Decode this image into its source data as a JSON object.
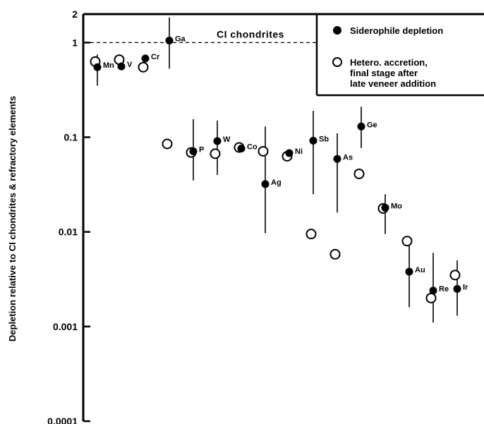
{
  "chart_data": {
    "type": "scatter",
    "title": "",
    "xlabel": "",
    "ylabel": "Depletion relative to CI chondrites & refractory elements",
    "y_scale": "log",
    "ylim": [
      0.0001,
      2
    ],
    "y_ticks": [
      {
        "value": 2,
        "label": "2"
      },
      {
        "value": 1,
        "label": "1"
      },
      {
        "value": 0.1,
        "label": "0.1"
      },
      {
        "value": 0.01,
        "label": "0.01"
      },
      {
        "value": 0.001,
        "label": "0.001"
      },
      {
        "value": 0.0001,
        "label": "0.0001"
      }
    ],
    "reference_line": {
      "value": 1,
      "label": "CI chondrites",
      "style": "dashed"
    },
    "grid": false,
    "legend": {
      "placement": "top-right",
      "entries": [
        {
          "marker": "filled-circle",
          "label": "Siderophile depletion"
        },
        {
          "marker": "open-circle",
          "label_lines": [
            "Hetero. accretion,",
            "final stage after",
            "late veneer addition"
          ]
        }
      ]
    },
    "elements": [
      {
        "label": "Mn",
        "depletion": 0.55,
        "err_low": 0.35,
        "err_high": 0.75,
        "accretion": 0.63
      },
      {
        "label": "V",
        "depletion": 0.56,
        "err_low": null,
        "err_high": null,
        "accretion": 0.66
      },
      {
        "label": "Cr",
        "depletion": 0.68,
        "err_low": null,
        "err_high": null,
        "accretion": 0.55
      },
      {
        "label": "Ga",
        "depletion": 1.05,
        "err_low": 0.53,
        "err_high": 1.85,
        "accretion": 0.085
      },
      {
        "label": "P",
        "depletion": 0.071,
        "err_low": 0.035,
        "err_high": 0.155,
        "accretion": 0.069
      },
      {
        "label": "W",
        "depletion": 0.091,
        "err_low": 0.04,
        "err_high": 0.15,
        "accretion": 0.067
      },
      {
        "label": "Co",
        "depletion": 0.076,
        "err_low": null,
        "err_high": null,
        "accretion": 0.078
      },
      {
        "label": "Ag",
        "depletion": 0.032,
        "err_low": 0.0097,
        "err_high": 0.13,
        "accretion": 0.071
      },
      {
        "label": "Ni",
        "depletion": 0.068,
        "err_low": null,
        "err_high": null,
        "accretion": 0.063
      },
      {
        "label": "Sb",
        "depletion": 0.092,
        "err_low": 0.025,
        "err_high": 0.19,
        "accretion": 0.0095
      },
      {
        "label": "As",
        "depletion": 0.059,
        "err_low": 0.016,
        "err_high": 0.11,
        "accretion": 0.0058
      },
      {
        "label": "Ge",
        "depletion": 0.13,
        "err_low": 0.077,
        "err_high": 0.21,
        "accretion": 0.041
      },
      {
        "label": "Mo",
        "depletion": 0.018,
        "err_low": 0.0095,
        "err_high": 0.025,
        "accretion": 0.0177
      },
      {
        "label": "Au",
        "depletion": 0.0038,
        "err_low": 0.0016,
        "err_high": 0.0075,
        "accretion": 0.008
      },
      {
        "label": "Re",
        "depletion": 0.0024,
        "err_low": 0.0011,
        "err_high": 0.006,
        "accretion": 0.002
      },
      {
        "label": "Ir",
        "depletion": 0.0025,
        "err_low": 0.0013,
        "err_high": 0.005,
        "accretion": 0.0035
      }
    ]
  }
}
